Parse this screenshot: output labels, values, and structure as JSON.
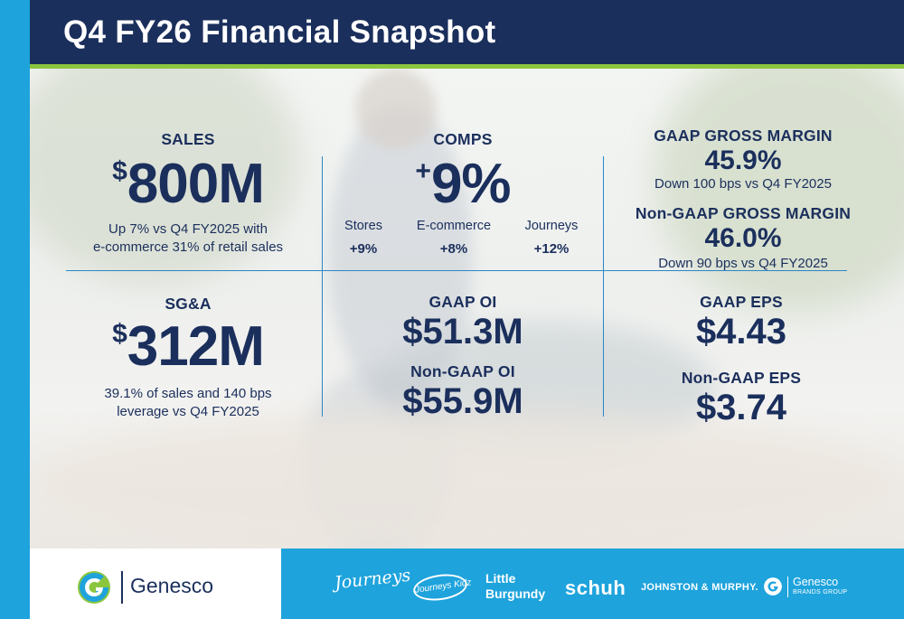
{
  "header": {
    "title": "Q4 FY26 Financial Snapshot"
  },
  "sales": {
    "label": "SALES",
    "currency": "$",
    "value": "800M",
    "note_line1": "Up 7% vs Q4 FY2025 with",
    "note_line2": "e-commerce 31% of retail sales"
  },
  "comps": {
    "label": "COMPS",
    "sign": "+",
    "value": "9%",
    "channels": [
      {
        "name": "Stores",
        "value": "+9%"
      },
      {
        "name": "E-commerce",
        "value": "+8%"
      },
      {
        "name": "Journeys",
        "value": "+12%"
      }
    ]
  },
  "gross_margin": {
    "gaap_label": "GAAP GROSS MARGIN",
    "gaap_value": "45.9%",
    "gaap_note": "Down 100 bps vs Q4 FY2025",
    "nongaap_label": "Non-GAAP GROSS MARGIN",
    "nongaap_value": "46.0%",
    "nongaap_note": "Down 90 bps vs Q4 FY2025"
  },
  "sga": {
    "label": "SG&A",
    "currency": "$",
    "value": "312M",
    "note_line1": "39.1% of sales and 140 bps",
    "note_line2": "leverage vs Q4 FY2025"
  },
  "operating_income": {
    "gaap_label": "GAAP OI",
    "gaap_value": "$51.3M",
    "nongaap_label": "Non-GAAP OI",
    "nongaap_value": "$55.9M"
  },
  "eps": {
    "gaap_label": "GAAP EPS",
    "gaap_value": "$4.43",
    "nongaap_label": "Non-GAAP EPS",
    "nongaap_value": "$3.74"
  },
  "footer": {
    "company": "Genesco",
    "brands": {
      "journeys": "Journeys",
      "journeys_kidz": "Journeys Kidz",
      "little_burgundy_line1": "Little",
      "little_burgundy_line2": "Burgundy",
      "schuh": "schuh",
      "johnston_murphy": "JOHNSTON & MURPHY.",
      "gbg_name": "Genesco",
      "gbg_sub": "BRANDS GROUP"
    }
  },
  "colors": {
    "navy": "#1b2f5c",
    "blue": "#1ea3dc",
    "green": "#8cc63f",
    "divider": "#2b86c5"
  }
}
